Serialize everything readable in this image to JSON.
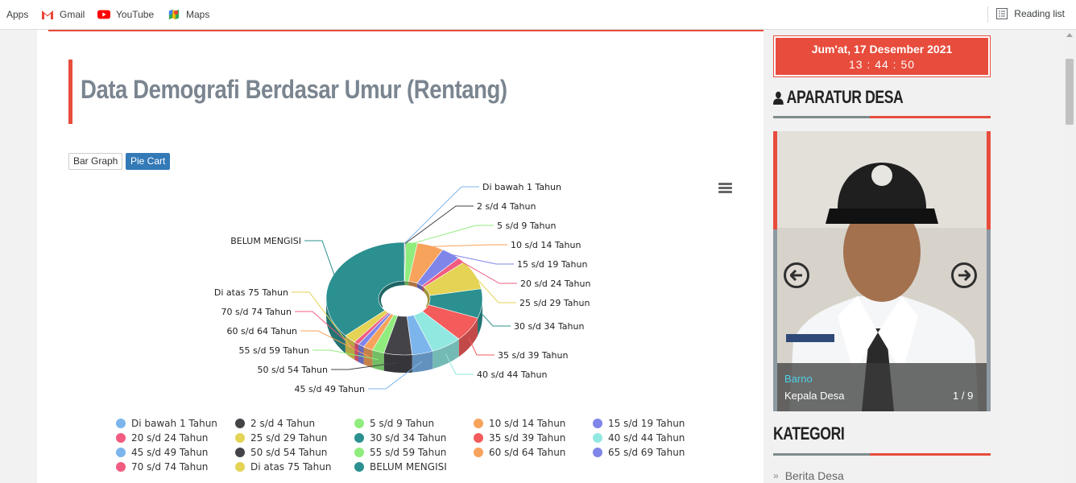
{
  "bookmarks": {
    "items": [
      {
        "label": "Apps",
        "icon": "apps-icon"
      },
      {
        "label": "Gmail",
        "icon": "gmail-icon"
      },
      {
        "label": "YouTube",
        "icon": "youtube-icon"
      },
      {
        "label": "Maps",
        "icon": "maps-icon"
      }
    ],
    "reading_list": "Reading list"
  },
  "main": {
    "title": "Data Demografi Berdasar Umur (Rentang)",
    "buttons": {
      "bar": "Bar Graph",
      "pie": "Pie Cart"
    }
  },
  "chart_data": {
    "type": "pie",
    "title": "",
    "donut": true,
    "three_d": true,
    "categories": [
      "Di bawah 1 Tahun",
      "2 s/d 4 Tahun",
      "5 s/d 9 Tahun",
      "10 s/d 14 Tahun",
      "15 s/d 19 Tahun",
      "20 s/d 24 Tahun",
      "25 s/d 29 Tahun",
      "30 s/d 34 Tahun",
      "35 s/d 39 Tahun",
      "40 s/d 44 Tahun",
      "45 s/d 49 Tahun",
      "50 s/d 54 Tahun",
      "55 s/d 59 Tahun",
      "60 s/d 64 Tahun",
      "65 s/d 69 Tahun",
      "70 s/d 74 Tahun",
      "Di atas 75 Tahun",
      "BELUM MENGISI"
    ],
    "values": [
      0.1,
      0.2,
      2.4,
      5.5,
      4.0,
      1.6,
      8.4,
      8.4,
      7.1,
      6.4,
      4.3,
      5.8,
      2.5,
      2.0,
      1.3,
      1.0,
      2.6,
      36.4
    ],
    "colors": [
      "#7cb5ec",
      "#434348",
      "#90ed7d",
      "#f7a35c",
      "#8085e9",
      "#f15c80",
      "#e4d354",
      "#2b908f",
      "#f45b5b",
      "#91e8e1",
      "#7cb5ec",
      "#434348",
      "#90ed7d",
      "#f7a35c",
      "#8085e9",
      "#f15c80",
      "#e4d354",
      "#2b908f"
    ],
    "legend_position": "bottom"
  },
  "sidebar": {
    "date": "Jum'at, 17 Desember 2021",
    "time": "13 : 44 : 50",
    "aparatur_title": "APARATUR DESA",
    "slide": {
      "name": "Barno",
      "role": "Kepala Desa",
      "counter": "1 / 9"
    },
    "kategori_title": "KATEGORI",
    "kategori_items": [
      "Berita Desa"
    ]
  }
}
